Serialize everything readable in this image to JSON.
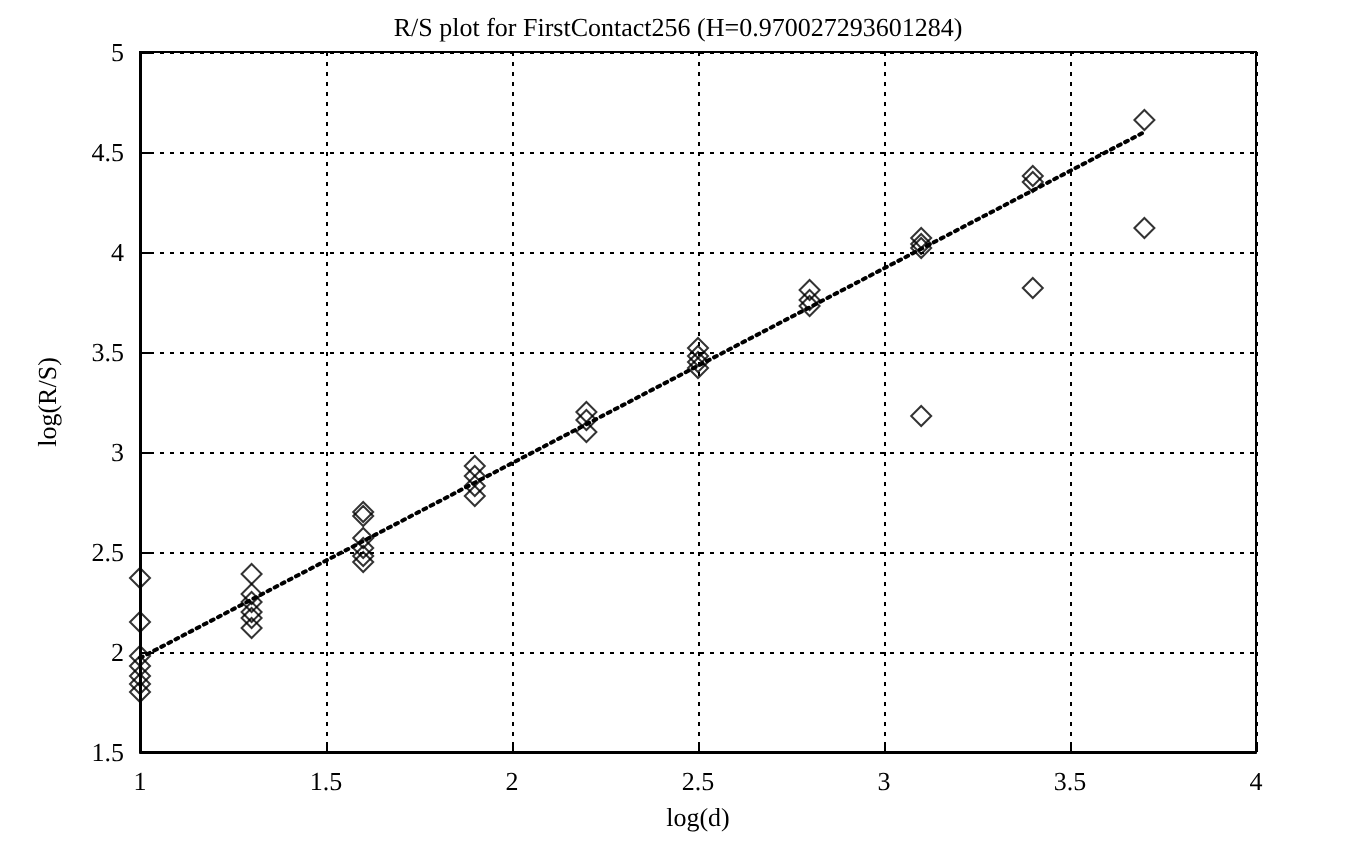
{
  "chart_data": {
    "type": "scatter",
    "title": "R/S plot for FirstContact256 (H=0.970027293601284)",
    "xlabel": "log(d)",
    "ylabel": "log(R/S)",
    "xlim": [
      1,
      4
    ],
    "xticks": [
      1,
      1.5,
      2,
      2.5,
      3,
      3.5,
      4
    ],
    "ylim": [
      1.5,
      5
    ],
    "yticks": [
      1.5,
      2,
      2.5,
      3,
      3.5,
      4,
      4.5,
      5
    ],
    "grid": true,
    "marker": "diamond",
    "series": [
      {
        "color": "#000000",
        "x": [
          1,
          1,
          1,
          1,
          1,
          1,
          1,
          1.3,
          1.3,
          1.3,
          1.3,
          1.3,
          1.3,
          1.6,
          1.6,
          1.6,
          1.6,
          1.6,
          1.6,
          1.9,
          1.9,
          1.9,
          1.9,
          2.2,
          2.2,
          2.2,
          2.5,
          2.5,
          2.5,
          2.5,
          2.8,
          2.8,
          2.8,
          3.1,
          3.1,
          3.1,
          3.1,
          3.4,
          3.4,
          3.4,
          3.7,
          3.7
        ],
        "values": [
          2.37,
          2.15,
          1.98,
          1.93,
          1.88,
          1.84,
          1.8,
          2.39,
          2.29,
          2.25,
          2.2,
          2.17,
          2.12,
          2.7,
          2.68,
          2.57,
          2.52,
          2.48,
          2.45,
          2.93,
          2.88,
          2.83,
          2.78,
          3.2,
          3.16,
          3.1,
          3.52,
          3.48,
          3.45,
          3.42,
          3.81,
          3.76,
          3.73,
          4.07,
          4.04,
          4.02,
          3.18,
          4.38,
          4.35,
          3.82,
          4.66,
          4.12
        ]
      },
      {
        "type": "line",
        "color": "#000000",
        "marker": "none",
        "line_style": "dotted",
        "x": [
          1,
          3.7
        ],
        "values": [
          1.97,
          4.6
        ]
      }
    ]
  }
}
